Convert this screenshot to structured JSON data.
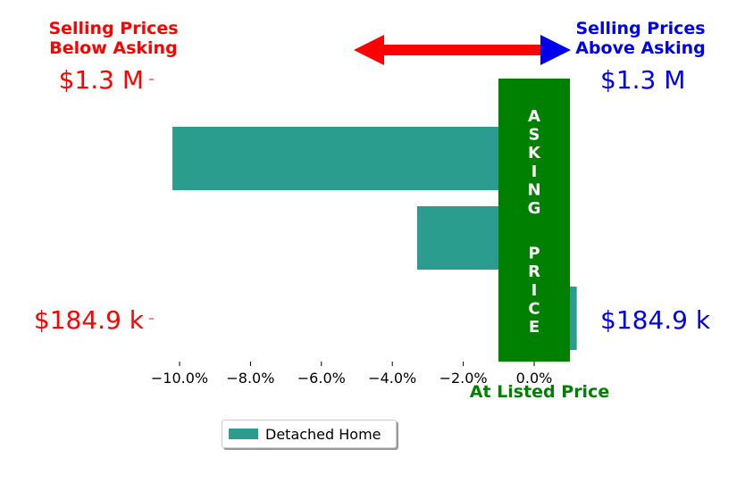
{
  "chart_data": {
    "type": "bar",
    "orientation": "horizontal",
    "series": [
      {
        "name": "Detached Home",
        "color": "#2a9d8f",
        "values": [
          -10.2,
          -3.3,
          1.2
        ]
      }
    ],
    "xticks": [
      "−10.0%",
      "−8.0%",
      "−6.0%",
      "−4.0%",
      "−2.0%",
      "0.0%"
    ],
    "xlim": [
      -10.5,
      1.3
    ],
    "xlabel": "At Listed Price",
    "header_left": "Selling Prices\nBelow Asking",
    "header_right": "Selling Prices\nAbove Asking",
    "left_labels": {
      "top": "$1.3 M",
      "bottom": "$184.9 k"
    },
    "right_labels": {
      "top": "$1.3 M",
      "bottom": "$184.9 k"
    },
    "center_band_text": "ASKING PRICE",
    "colors": {
      "below": "#ff0000",
      "above": "#0000ee",
      "center": "#008000"
    }
  }
}
